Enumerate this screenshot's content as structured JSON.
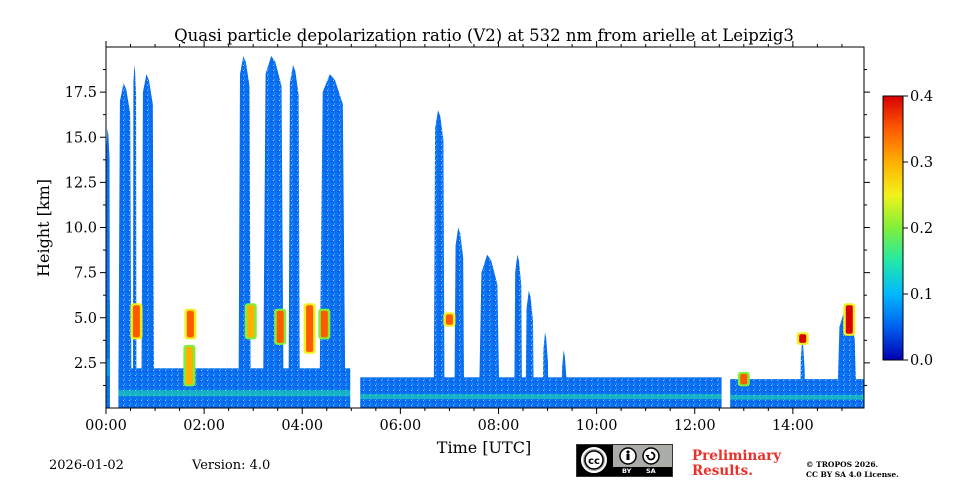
{
  "chart_data": {
    "type": "heatmap",
    "title": "Quasi particle depolarization ratio (V2) at 532 nm from arielle at Leipzig3",
    "xlabel": "Time [UTC]",
    "ylabel": "Height [km]",
    "xlim": [
      0,
      15.45
    ],
    "ylim": [
      0,
      20.0
    ],
    "x_ticks": [
      0,
      2,
      4,
      6,
      8,
      10,
      12,
      14
    ],
    "x_tick_labels": [
      "00:00",
      "02:00",
      "04:00",
      "06:00",
      "08:00",
      "10:00",
      "12:00",
      "14:00"
    ],
    "y_ticks": [
      2.5,
      5.0,
      7.5,
      10.0,
      12.5,
      15.0,
      17.5
    ],
    "y_tick_labels": [
      "2.5",
      "5.0",
      "7.5",
      "10.0",
      "12.5",
      "15.0",
      "17.5"
    ],
    "colorbar": {
      "range": [
        0.0,
        0.4
      ],
      "ticks": [
        0.0,
        0.1,
        0.2,
        0.3,
        0.4
      ],
      "tick_labels": [
        "0.0",
        "0.1",
        "0.2",
        "0.3",
        "0.4"
      ],
      "colors": [
        "#0000b0",
        "#005ff0",
        "#00b8ff",
        "#22e8a8",
        "#7ff03a",
        "#f2f21a",
        "#ffb000",
        "#ff5a00",
        "#d80000"
      ]
    },
    "cloud_columns": [
      {
        "t0": 0.0,
        "t1": 0.08,
        "top": 15.5,
        "val": 0.03
      },
      {
        "t0": 0.25,
        "t1": 0.52,
        "top": 18.0,
        "val": 0.03
      },
      {
        "t0": 0.55,
        "t1": 0.62,
        "top": 19.0,
        "val": 0.02
      },
      {
        "t0": 0.72,
        "t1": 0.98,
        "top": 18.5,
        "val": 0.03
      },
      {
        "t0": 2.7,
        "t1": 2.95,
        "top": 19.5,
        "val": 0.03
      },
      {
        "t0": 3.2,
        "t1": 3.62,
        "top": 19.5,
        "val": 0.03
      },
      {
        "t0": 3.72,
        "t1": 3.95,
        "top": 19.0,
        "val": 0.03
      },
      {
        "t0": 4.35,
        "t1": 4.88,
        "top": 18.5,
        "val": 0.03
      },
      {
        "t0": 6.68,
        "t1": 6.9,
        "top": 16.5,
        "val": 0.03
      },
      {
        "t0": 7.1,
        "t1": 7.3,
        "top": 10.0,
        "val": 0.03
      },
      {
        "t0": 7.6,
        "t1": 8.02,
        "top": 8.5,
        "val": 0.03
      },
      {
        "t0": 8.32,
        "t1": 8.48,
        "top": 8.5,
        "val": 0.03
      },
      {
        "t0": 8.55,
        "t1": 8.72,
        "top": 6.5,
        "val": 0.03
      },
      {
        "t0": 8.9,
        "t1": 9.02,
        "top": 4.2,
        "val": 0.03
      },
      {
        "t0": 9.28,
        "t1": 9.4,
        "top": 3.2,
        "val": 0.03
      },
      {
        "t0": 14.15,
        "t1": 14.25,
        "top": 3.8,
        "val": 0.03
      },
      {
        "t0": 14.9,
        "t1": 15.3,
        "top": 5.5,
        "val": 0.05
      }
    ],
    "boundary_layer": [
      {
        "t0": 0.0,
        "t1": 0.08,
        "top": 6.0,
        "val": 0.05
      },
      {
        "t0": 0.25,
        "t1": 4.98,
        "top": 2.2,
        "val": 0.08
      },
      {
        "t0": 5.18,
        "t1": 12.55,
        "top": 1.7,
        "val": 0.08
      },
      {
        "t0": 12.72,
        "t1": 15.45,
        "top": 1.6,
        "val": 0.1
      }
    ],
    "aerosol_features": [
      {
        "t": 0.62,
        "h0": 3.8,
        "h1": 5.8,
        "val": 0.35
      },
      {
        "t": 1.7,
        "h0": 1.2,
        "h1": 3.5,
        "val": 0.32
      },
      {
        "t": 1.72,
        "h0": 3.8,
        "h1": 5.5,
        "val": 0.37
      },
      {
        "t": 2.95,
        "h0": 3.8,
        "h1": 5.8,
        "val": 0.3
      },
      {
        "t": 3.55,
        "h0": 3.5,
        "h1": 5.5,
        "val": 0.33
      },
      {
        "t": 4.15,
        "h0": 3.0,
        "h1": 5.8,
        "val": 0.37
      },
      {
        "t": 4.45,
        "h0": 3.8,
        "h1": 5.5,
        "val": 0.33
      },
      {
        "t": 7.0,
        "h0": 4.5,
        "h1": 5.3,
        "val": 0.36
      },
      {
        "t": 13.0,
        "h0": 1.2,
        "h1": 2.0,
        "val": 0.33
      },
      {
        "t": 14.2,
        "h0": 3.5,
        "h1": 4.2,
        "val": 0.38
      },
      {
        "t": 15.15,
        "h0": 4.0,
        "h1": 5.8,
        "val": 0.38
      }
    ],
    "data_gaps": [
      {
        "t0": 0.08,
        "t1": 0.25
      },
      {
        "t0": 4.98,
        "t1": 5.18
      },
      {
        "t0": 12.55,
        "t1": 12.72
      }
    ]
  },
  "footer": {
    "date": "2026-01-02",
    "version": "Version: 4.0",
    "preliminary_line1": "Preliminary",
    "preliminary_line2": "Results.",
    "copyright_line1": "© TROPOS 2026.",
    "copyright_line2": "CC BY SA 4.0 License.",
    "license_by": "BY",
    "license_sa": "SA"
  }
}
